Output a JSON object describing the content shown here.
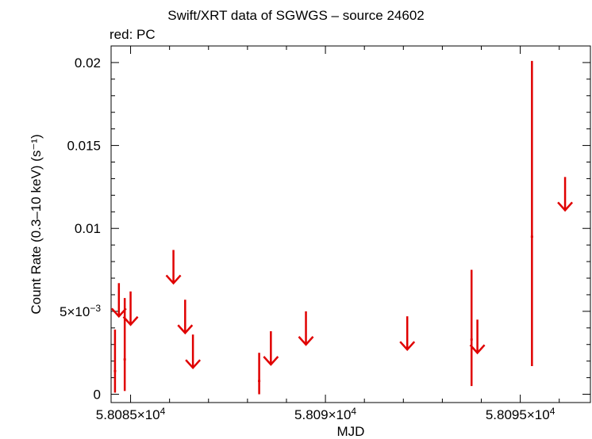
{
  "chart_data": {
    "type": "scatter",
    "title": "Swift/XRT data of SGWGS – source 24602",
    "subtitle": "red: PC",
    "xlabel": "MJD",
    "ylabel": "Count Rate (0.3–10 keV) (s⁻¹)",
    "xlim": [
      58084.5,
      58096.8
    ],
    "ylim": [
      -0.0005,
      0.021
    ],
    "x_ticks": [
      {
        "value": 58085,
        "mantissa": "5.8085",
        "exponent": "4"
      },
      {
        "value": 58090,
        "mantissa": "5.809",
        "exponent": "4"
      },
      {
        "value": 58095,
        "mantissa": "5.8095",
        "exponent": "4"
      }
    ],
    "y_ticks": [
      {
        "value": 0,
        "label": "0"
      },
      {
        "value": 0.005,
        "label": "5×10",
        "exponent": "−3"
      },
      {
        "value": 0.01,
        "label": "0.01"
      },
      {
        "value": 0.015,
        "label": "0.015"
      },
      {
        "value": 0.02,
        "label": "0.02"
      }
    ],
    "color": "#e00000",
    "series": [
      {
        "detections": [
          {
            "x": 58084.6,
            "y": 0.0014,
            "ylow": 0.0001,
            "yhigh": 0.0039
          },
          {
            "x": 58084.85,
            "y": 0.0021,
            "ylow": 0.0002,
            "yhigh": 0.0058
          },
          {
            "x": 58088.3,
            "y": 0.0008,
            "ylow": 0.0,
            "yhigh": 0.0025
          },
          {
            "x": 58093.75,
            "y": 0.0033,
            "ylow": 0.0005,
            "yhigh": 0.0075
          },
          {
            "x": 58095.3,
            "y": 0.0095,
            "ylow": 0.0017,
            "yhigh": 0.0201
          }
        ],
        "upper_limits": [
          {
            "x": 58084.7,
            "y": 0.0067
          },
          {
            "x": 58085.0,
            "y": 0.0062
          },
          {
            "x": 58086.1,
            "y": 0.0087
          },
          {
            "x": 58086.4,
            "y": 0.0057
          },
          {
            "x": 58086.6,
            "y": 0.0036
          },
          {
            "x": 58088.6,
            "y": 0.0038
          },
          {
            "x": 58089.5,
            "y": 0.005
          },
          {
            "x": 58092.1,
            "y": 0.0047
          },
          {
            "x": 58093.9,
            "y": 0.0045
          },
          {
            "x": 58096.15,
            "y": 0.0131
          }
        ]
      }
    ]
  }
}
